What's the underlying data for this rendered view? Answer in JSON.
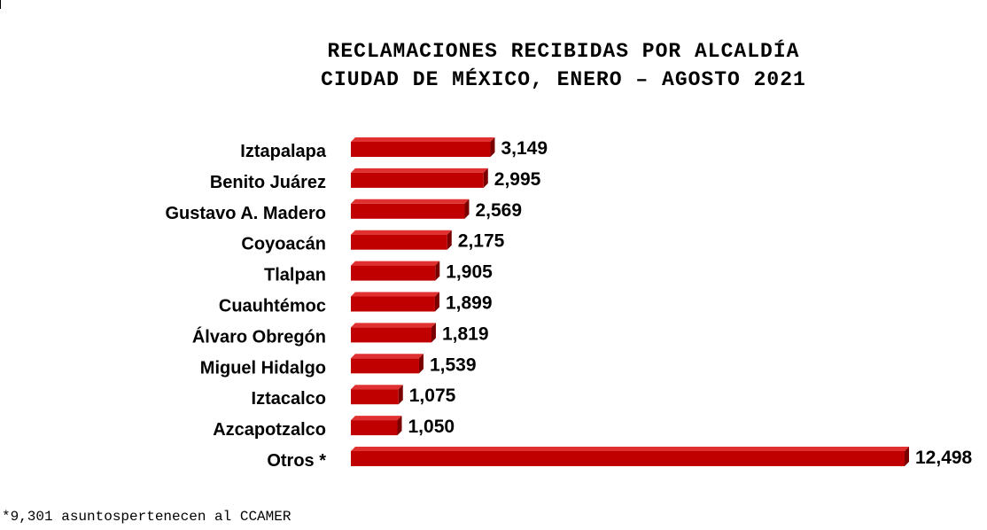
{
  "chart_data": {
    "type": "bar",
    "orientation": "horizontal",
    "title_lines": [
      "RECLAMACIONES RECIBIDAS POR ALCALDÍA",
      "CIUDAD DE MÉXICO, ENERO – AGOSTO 2021"
    ],
    "categories": [
      "Iztapalapa",
      "Benito Juárez",
      "Gustavo A. Madero",
      "Coyoacán",
      "Tlalpan",
      "Cuauhtémoc",
      "Álvaro Obregón",
      "Miguel Hidalgo",
      "Iztacalco",
      "Azcapotzalco",
      "Otros *"
    ],
    "values": [
      3149,
      2995,
      2569,
      2175,
      1905,
      1899,
      1819,
      1539,
      1075,
      1050,
      12498
    ],
    "value_labels": [
      "3,149",
      "2,995",
      "2,569",
      "2,175",
      "1,905",
      "1,899",
      "1,819",
      "1,539",
      "1,075",
      "1,050",
      "12,498"
    ],
    "xlim": [
      0,
      12498
    ],
    "grid": false,
    "legend": "none",
    "bar_color": "#c00000",
    "bar_top_color": "#e03030",
    "bar_side_color": "#7a0000",
    "footnote": "*9,301 asuntospertenecen al CCAMER"
  }
}
